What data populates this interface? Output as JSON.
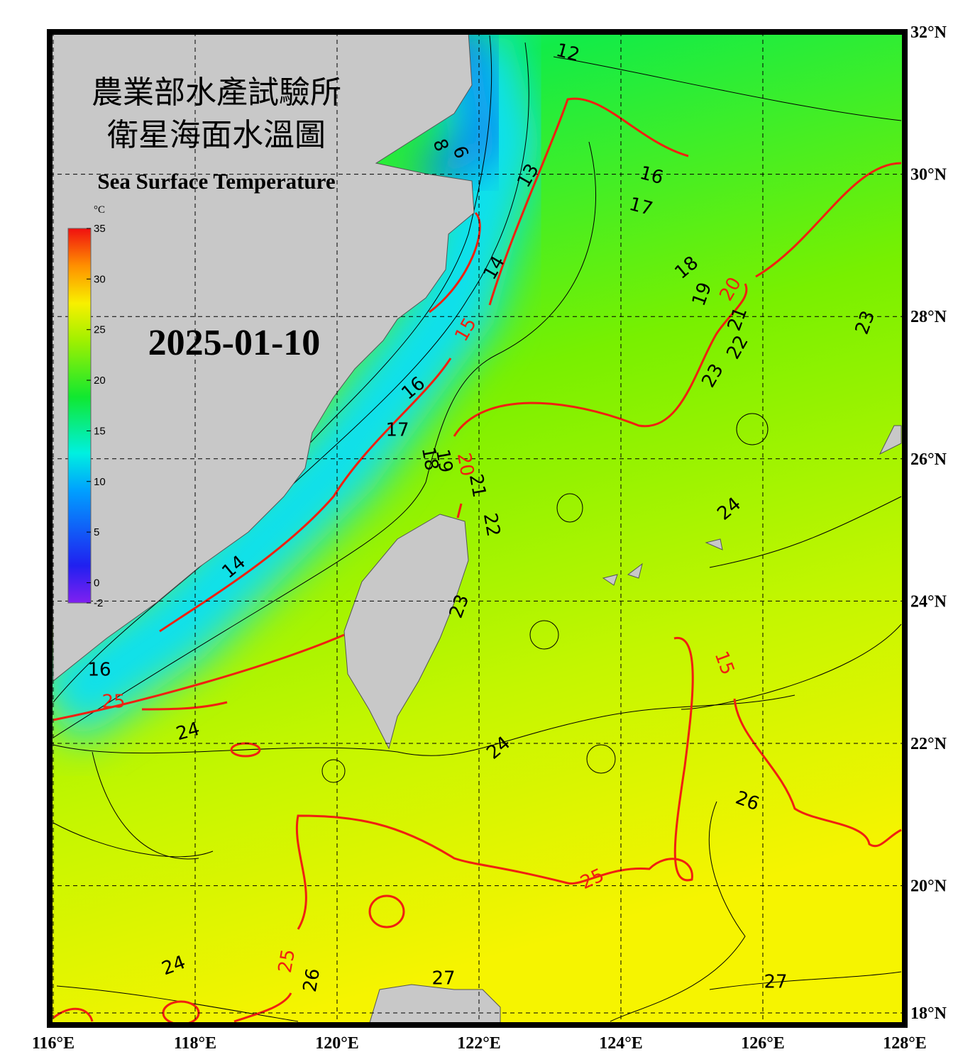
{
  "header": {
    "title_zh_1": "農業部水產試驗所",
    "title_zh_2": "衛星海面水溫圖",
    "title_en": "Sea Surface Temperature"
  },
  "date": "2025-01-10",
  "lon_ticks": [
    {
      "value": 116,
      "label": "116°E"
    },
    {
      "value": 118,
      "label": "118°E"
    },
    {
      "value": 120,
      "label": "120°E"
    },
    {
      "value": 122,
      "label": "122°E"
    },
    {
      "value": 124,
      "label": "124°E"
    },
    {
      "value": 126,
      "label": "126°E"
    },
    {
      "value": 128,
      "label": "128°E"
    }
  ],
  "lat_ticks": [
    {
      "value": 32,
      "label": "32°N"
    },
    {
      "value": 30,
      "label": "30°N"
    },
    {
      "value": 28,
      "label": "28°N"
    },
    {
      "value": 26,
      "label": "26°N"
    },
    {
      "value": 24,
      "label": "24°N"
    },
    {
      "value": 22,
      "label": "22°N"
    },
    {
      "value": 20,
      "label": "20°N"
    },
    {
      "value": 18,
      "label": "18°N"
    }
  ],
  "colorbar": {
    "unit": "°C",
    "ticks": [
      35,
      30,
      25,
      20,
      15,
      10,
      5,
      0,
      -2
    ]
  },
  "isotherm_labels_major": [
    "15",
    "20",
    "15",
    "20",
    "25",
    "25",
    "25"
  ],
  "isotherm_labels": [
    "12",
    "8",
    "6",
    "13",
    "16",
    "17",
    "14",
    "18",
    "19",
    "21",
    "22",
    "23",
    "23",
    "16",
    "17",
    "18",
    "19",
    "21",
    "22",
    "24",
    "14",
    "23",
    "16",
    "24",
    "24",
    "26",
    "24",
    "26",
    "27",
    "27"
  ]
}
